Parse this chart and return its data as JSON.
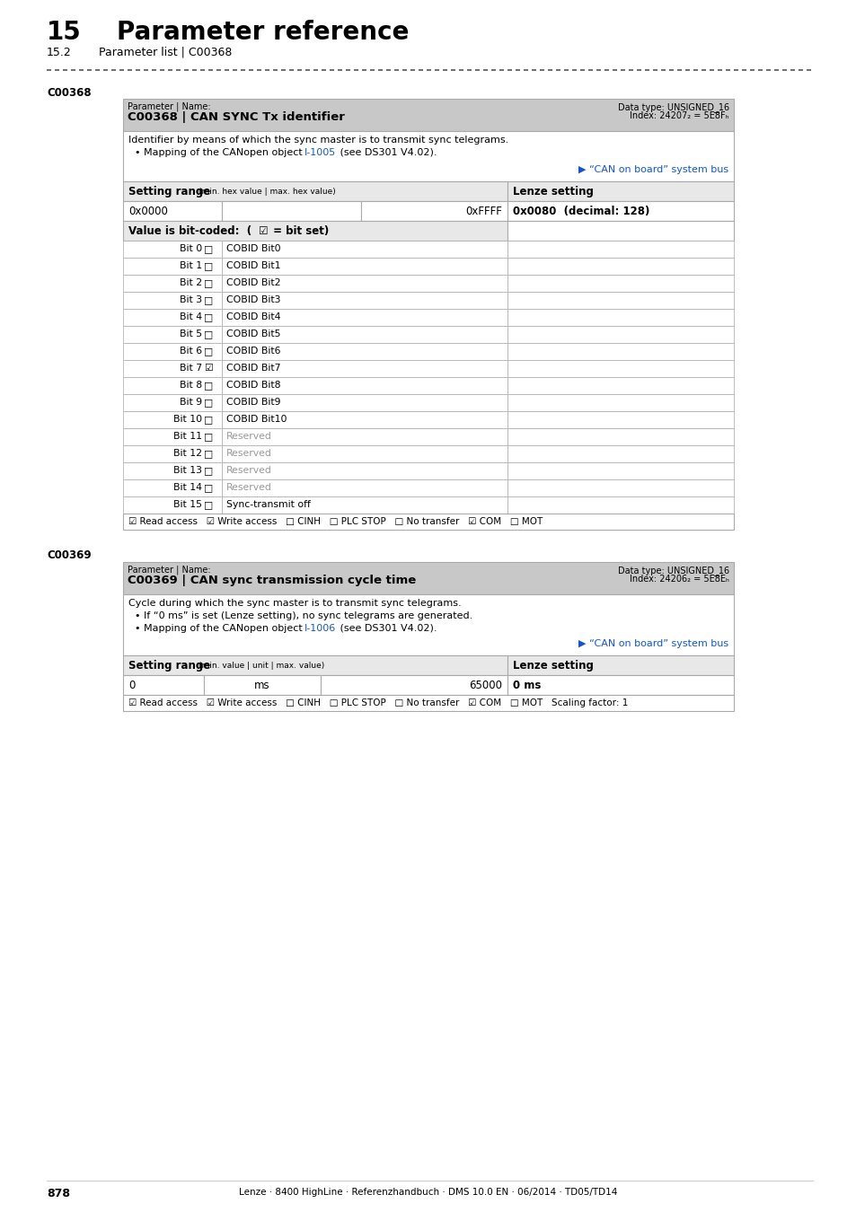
{
  "page_title_num": "15",
  "page_title": "Parameter reference",
  "page_subtitle_num": "15.2",
  "page_subtitle": "Parameter list | C00368",
  "section1_label": "C00368",
  "section1_header_left": "Parameter | Name:",
  "section1_header_name": "C00368 | CAN SYNC Tx identifier",
  "section1_header_right1": "Data type: UNSIGNED_16",
  "section1_header_right2": "Index: 24207₂ = 5E8Fₕ",
  "section1_link": "▶ “CAN on board” system bus",
  "section1_setting_range_label": "Setting range",
  "section1_setting_range_sub": "(min. hex value | max. hex value)",
  "section1_lenze_setting_label": "Lenze setting",
  "section1_range_min": "0x0000",
  "section1_range_max": "0xFFFF",
  "section1_lenze_val": "0x0080  (decimal: 128)",
  "section1_bits": [
    {
      "bit": "Bit 0",
      "checked": false,
      "desc": "COBID Bit0",
      "reserved": false
    },
    {
      "bit": "Bit 1",
      "checked": false,
      "desc": "COBID Bit1",
      "reserved": false
    },
    {
      "bit": "Bit 2",
      "checked": false,
      "desc": "COBID Bit2",
      "reserved": false
    },
    {
      "bit": "Bit 3",
      "checked": false,
      "desc": "COBID Bit3",
      "reserved": false
    },
    {
      "bit": "Bit 4",
      "checked": false,
      "desc": "COBID Bit4",
      "reserved": false
    },
    {
      "bit": "Bit 5",
      "checked": false,
      "desc": "COBID Bit5",
      "reserved": false
    },
    {
      "bit": "Bit 6",
      "checked": false,
      "desc": "COBID Bit6",
      "reserved": false
    },
    {
      "bit": "Bit 7",
      "checked": true,
      "desc": "COBID Bit7",
      "reserved": false
    },
    {
      "bit": "Bit 8",
      "checked": false,
      "desc": "COBID Bit8",
      "reserved": false
    },
    {
      "bit": "Bit 9",
      "checked": false,
      "desc": "COBID Bit9",
      "reserved": false
    },
    {
      "bit": "Bit 10",
      "checked": false,
      "desc": "COBID Bit10",
      "reserved": false
    },
    {
      "bit": "Bit 11",
      "checked": false,
      "desc": "Reserved",
      "reserved": true
    },
    {
      "bit": "Bit 12",
      "checked": false,
      "desc": "Reserved",
      "reserved": true
    },
    {
      "bit": "Bit 13",
      "checked": false,
      "desc": "Reserved",
      "reserved": true
    },
    {
      "bit": "Bit 14",
      "checked": false,
      "desc": "Reserved",
      "reserved": true
    },
    {
      "bit": "Bit 15",
      "checked": false,
      "desc": "Sync-transmit off",
      "reserved": false
    }
  ],
  "section1_footer": "☑ Read access   ☑ Write access   □ CINH   □ PLC STOP   □ No transfer   ☑ COM   □ MOT",
  "section2_label": "C00369",
  "section2_header_left": "Parameter | Name:",
  "section2_header_name": "C00369 | CAN sync transmission cycle time",
  "section2_header_right1": "Data type: UNSIGNED_16",
  "section2_header_right2": "Index: 24206₂ = 5E8Eₕ",
  "section2_link": "▶ “CAN on board” system bus",
  "section2_setting_range_label": "Setting range",
  "section2_setting_range_sub": "(min. value | unit | max. value)",
  "section2_lenze_setting_label": "Lenze setting",
  "section2_range_min": "0",
  "section2_range_unit": "ms",
  "section2_range_max": "65000",
  "section2_lenze_val": "0 ms",
  "section2_footer": "☑ Read access   ☑ Write access   □ CINH   □ PLC STOP   □ No transfer   ☑ COM   □ MOT   Scaling factor: 1",
  "page_number": "878",
  "page_footer": "Lenze · 8400 HighLine · Referenzhandbuch · DMS 10.0 EN · 06/2014 · TD05/TD14",
  "header_bg": "#c8c8c8",
  "light_gray": "#e8e8e8",
  "table_border": "#aaaaaa",
  "link_color": "#1155cc",
  "reserved_color": "#999999",
  "dash_color": "#555555"
}
